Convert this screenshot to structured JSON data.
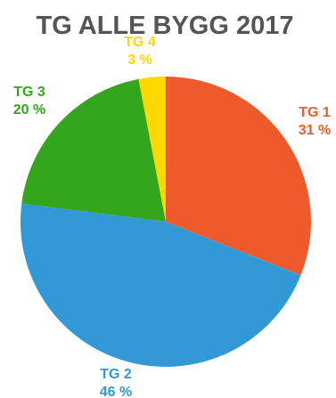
{
  "chart_data": {
    "type": "pie",
    "title": "TG ALLE BYGG 2017",
    "slices": [
      {
        "name": "TG 1",
        "value": 31,
        "value_label": "31 %",
        "color": "#EF5A2C"
      },
      {
        "name": "TG 2",
        "value": 46,
        "value_label": "46 %",
        "color": "#3399D6"
      },
      {
        "name": "TG 3",
        "value": 20,
        "value_label": "20 %",
        "color": "#33A61E"
      },
      {
        "name": "TG 4",
        "value": 3,
        "value_label": "3 %",
        "color": "#FFD800"
      }
    ],
    "start_angle_deg": 0,
    "direction": "clockwise",
    "legend": "none",
    "labels": "outside"
  }
}
